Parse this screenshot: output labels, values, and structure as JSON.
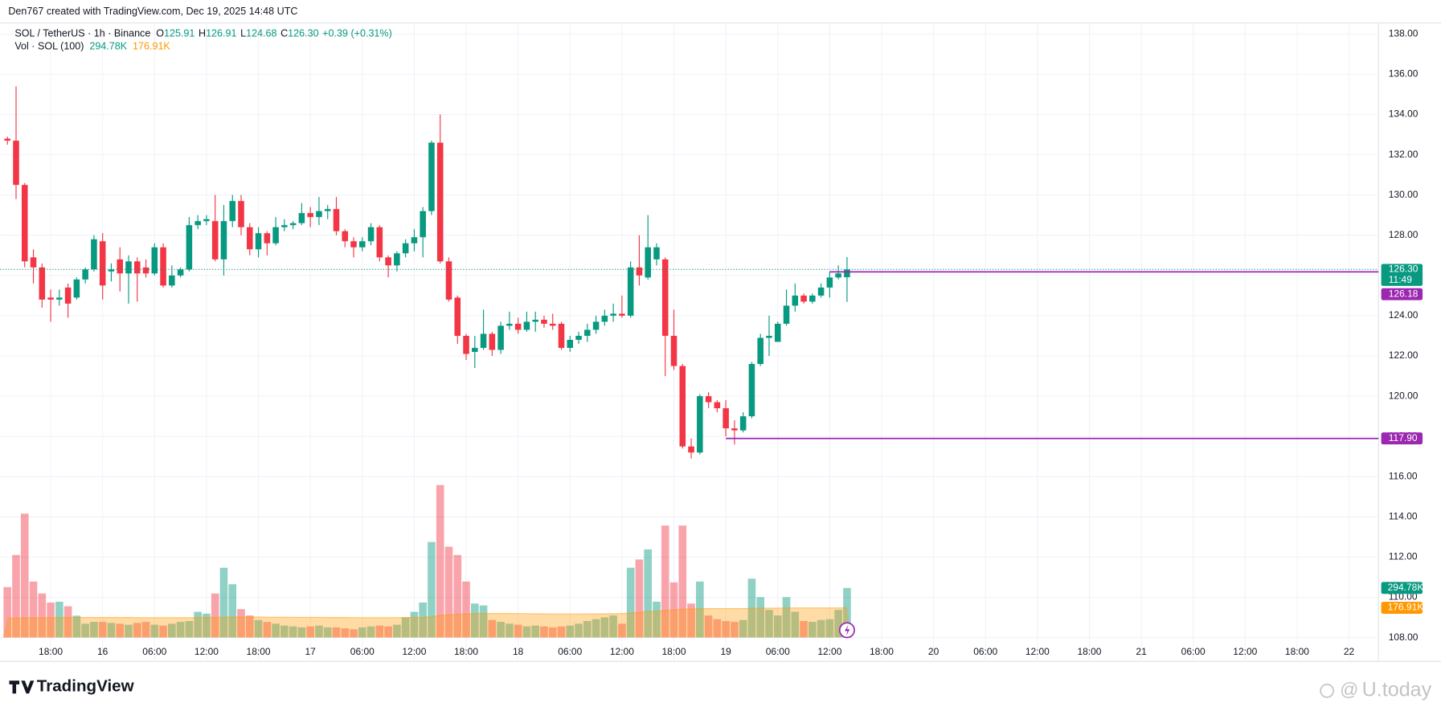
{
  "chart_data": {
    "type": "candlestick",
    "credit": "Den767 created with TradingView.com, Dec 19, 2025 14:48 UTC",
    "title": "SOL / TetherUS · 1h · Binance",
    "header_values": {
      "o_label": "O",
      "open": "125.91",
      "h_label": "H",
      "high": "126.91",
      "l_label": "L",
      "low": "124.68",
      "c_label": "C",
      "close": "126.30",
      "change": "+0.39 (+0.31%)"
    },
    "up_color": "#089981",
    "down_color": "#f23645",
    "open": [
      132.8,
      132.7,
      130.5,
      126.9,
      126.4,
      124.9,
      124.8,
      125.4,
      124.9,
      125.8,
      126.3,
      127.7,
      126.2,
      126.8,
      126.1,
      126.7,
      126.4,
      126.1,
      127.4,
      125.5,
      126.0,
      126.3,
      128.5,
      128.7,
      128.7,
      126.8,
      128.7,
      129.7,
      128.4,
      127.3,
      128.1,
      127.6,
      128.4,
      128.5,
      128.6,
      129.1,
      128.9,
      129.2,
      129.3,
      128.2,
      127.7,
      127.4,
      127.7,
      128.4,
      126.9,
      126.5,
      127.1,
      127.6,
      127.9,
      129.2,
      132.6,
      126.7,
      124.9,
      123.0,
      122.2,
      122.4,
      123.1,
      122.3,
      123.5,
      123.6,
      123.3,
      123.7,
      123.8,
      123.6,
      123.6,
      122.4,
      122.8,
      123.0,
      123.3,
      123.7,
      124.0,
      124.1,
      124.0,
      126.4,
      125.9,
      126.8,
      126.8,
      123.0,
      121.5,
      117.5,
      117.2,
      120.0,
      119.7,
      119.4,
      118.4,
      118.3,
      119.0,
      121.6,
      122.9,
      122.7,
      123.6,
      124.5,
      125.0,
      124.7,
      125.0,
      125.4,
      125.9,
      125.91
    ],
    "high": [
      132.9,
      135.4,
      130.6,
      127.3,
      126.6,
      125.3,
      125.3,
      125.6,
      125.9,
      126.4,
      128.0,
      128.1,
      126.6,
      127.4,
      127.0,
      126.9,
      126.8,
      127.6,
      127.6,
      126.5,
      126.4,
      128.9,
      129.0,
      129.0,
      130.0,
      129.5,
      130.0,
      130.0,
      128.6,
      128.4,
      128.2,
      128.9,
      128.8,
      128.7,
      129.6,
      129.4,
      129.9,
      129.5,
      129.9,
      128.3,
      127.9,
      127.9,
      128.6,
      128.5,
      127.0,
      127.2,
      127.8,
      128.3,
      129.4,
      132.7,
      134.0,
      126.9,
      125.0,
      123.1,
      123.0,
      124.3,
      123.2,
      123.7,
      124.2,
      123.9,
      124.2,
      124.2,
      124.0,
      124.1,
      123.7,
      123.0,
      123.2,
      123.6,
      124.0,
      124.3,
      124.6,
      125.0,
      126.7,
      128.0,
      129.0,
      127.6,
      126.9,
      124.3,
      121.6,
      117.9,
      120.1,
      120.2,
      119.8,
      119.8,
      118.8,
      119.2,
      121.7,
      123.1,
      124.0,
      123.7,
      125.3,
      125.6,
      125.1,
      125.1,
      125.6,
      126.2,
      126.5,
      126.91
    ],
    "low": [
      132.5,
      129.8,
      126.4,
      125.6,
      124.4,
      123.7,
      124.5,
      123.9,
      124.8,
      125.6,
      126.2,
      124.8,
      125.7,
      125.2,
      124.6,
      124.7,
      125.9,
      126.0,
      125.4,
      125.4,
      125.9,
      126.2,
      128.3,
      128.5,
      126.7,
      126.0,
      128.4,
      128.0,
      127.0,
      126.9,
      127.0,
      127.5,
      128.2,
      128.3,
      128.5,
      128.4,
      128.5,
      128.8,
      128.0,
      127.4,
      126.9,
      127.2,
      127.5,
      126.7,
      125.9,
      126.2,
      126.9,
      127.2,
      126.9,
      129.0,
      126.6,
      124.7,
      122.6,
      121.8,
      121.4,
      122.3,
      122.0,
      122.1,
      123.3,
      123.1,
      123.2,
      123.2,
      123.4,
      123.3,
      122.3,
      122.2,
      122.6,
      122.7,
      123.1,
      123.5,
      123.7,
      123.9,
      123.9,
      125.5,
      125.8,
      126.5,
      121.0,
      121.3,
      117.4,
      116.9,
      117.1,
      119.4,
      119.2,
      118.0,
      117.6,
      118.2,
      118.9,
      121.5,
      122.0,
      122.7,
      123.5,
      124.2,
      124.6,
      124.6,
      124.9,
      124.9,
      125.8,
      124.68
    ],
    "close": [
      132.7,
      130.5,
      126.7,
      126.4,
      124.8,
      124.8,
      124.9,
      124.6,
      125.8,
      126.3,
      127.8,
      125.5,
      126.3,
      126.1,
      126.7,
      126.1,
      126.1,
      127.4,
      125.5,
      126.0,
      126.3,
      128.5,
      128.7,
      128.8,
      126.8,
      128.7,
      129.7,
      128.4,
      127.3,
      128.1,
      127.6,
      128.4,
      128.5,
      128.6,
      129.1,
      128.9,
      129.2,
      129.3,
      128.2,
      127.7,
      127.4,
      127.7,
      128.4,
      126.9,
      126.5,
      127.1,
      127.6,
      127.9,
      129.2,
      132.6,
      126.7,
      124.8,
      123.0,
      122.1,
      122.4,
      123.1,
      122.3,
      123.5,
      123.6,
      123.3,
      123.7,
      123.8,
      123.6,
      123.5,
      122.4,
      122.8,
      123.0,
      123.3,
      123.7,
      124.0,
      124.1,
      124.0,
      126.4,
      126.0,
      127.4,
      127.4,
      123.0,
      121.5,
      117.5,
      117.2,
      120.0,
      119.7,
      119.4,
      118.4,
      118.3,
      119.0,
      121.6,
      122.9,
      123.0,
      123.6,
      124.5,
      125.0,
      124.7,
      125.0,
      125.4,
      125.9,
      126.1,
      126.3
    ],
    "volume": {
      "name": "Vol · SOL (100)",
      "values": [
        300,
        491,
        737,
        333,
        262,
        208,
        213,
        186,
        130,
        82,
        93,
        93,
        87,
        82,
        76,
        87,
        93,
        76,
        71,
        82,
        93,
        98,
        153,
        142,
        262,
        415,
        317,
        169,
        131,
        104,
        93,
        82,
        71,
        66,
        60,
        66,
        71,
        60,
        60,
        55,
        49,
        60,
        66,
        71,
        66,
        76,
        120,
        153,
        208,
        568,
        907,
        540,
        491,
        333,
        202,
        191,
        104,
        93,
        82,
        76,
        66,
        71,
        66,
        60,
        66,
        71,
        82,
        98,
        109,
        120,
        131,
        82,
        415,
        464,
        524,
        213,
        666,
        328,
        666,
        202,
        333,
        131,
        109,
        98,
        93,
        104,
        350,
        240,
        164,
        131,
        240,
        153,
        98,
        93,
        104,
        109,
        164,
        294.78
      ],
      "value_label": "294.78K",
      "ma_values": [
        115,
        116,
        117,
        118,
        118,
        118,
        119,
        119,
        119,
        119,
        119,
        119,
        119,
        119,
        119,
        118,
        118,
        118,
        118,
        118,
        118,
        118,
        119,
        119,
        120,
        121,
        122,
        122,
        122,
        122,
        121,
        121,
        121,
        120,
        120,
        120,
        120,
        119,
        119,
        119,
        118,
        118,
        118,
        118,
        118,
        118,
        119,
        119,
        120,
        124,
        131,
        135,
        139,
        141,
        142,
        143,
        143,
        143,
        143,
        142,
        142,
        141,
        141,
        140,
        140,
        140,
        140,
        140,
        141,
        141,
        142,
        142,
        146,
        150,
        155,
        156,
        162,
        164,
        169,
        170,
        172,
        172,
        172,
        172,
        172,
        172,
        174,
        175,
        175,
        175,
        176,
        176,
        176,
        176,
        176,
        176,
        176,
        176.91
      ],
      "ma_label": "176.91K",
      "ma_color": "#ff9800"
    },
    "last_price": {
      "value": 126.3,
      "label": "126.30",
      "countdown": "11:49"
    },
    "levels": [
      {
        "value": 126.18,
        "label": "126.18",
        "start": 95,
        "color": "#9c27b0"
      },
      {
        "value": 117.9,
        "label": "117.90",
        "start": 83,
        "color": "#9c27b0"
      }
    ],
    "ylim": [
      107.73,
      138.55
    ],
    "yticks": [
      {
        "value": 108,
        "label": "108.00"
      },
      {
        "value": 110,
        "label": "110.00"
      },
      {
        "value": 112,
        "label": "112.00"
      },
      {
        "value": 114,
        "label": "114.00"
      },
      {
        "value": 116,
        "label": "116.00"
      },
      {
        "value": 118,
        "label": "118.00"
      },
      {
        "value": 120,
        "label": "120.00"
      },
      {
        "value": 122,
        "label": "122.00"
      },
      {
        "value": 124,
        "label": "124.00"
      },
      {
        "value": 126,
        "label": "126.00"
      },
      {
        "value": 128,
        "label": "128.00"
      },
      {
        "value": 130,
        "label": "130.00"
      },
      {
        "value": 132,
        "label": "132.00"
      },
      {
        "value": 134,
        "label": "134.00"
      },
      {
        "value": 136,
        "label": "136.00"
      },
      {
        "value": 138,
        "label": "138.00"
      }
    ],
    "xlim": [
      -0.85,
      158.4
    ],
    "xticks": [
      {
        "value": 5,
        "label": "18:00"
      },
      {
        "value": 11,
        "label": "16"
      },
      {
        "value": 17,
        "label": "06:00"
      },
      {
        "value": 23,
        "label": "12:00"
      },
      {
        "value": 29,
        "label": "18:00"
      },
      {
        "value": 35,
        "label": "17"
      },
      {
        "value": 41,
        "label": "06:00"
      },
      {
        "value": 47,
        "label": "12:00"
      },
      {
        "value": 53,
        "label": "18:00"
      },
      {
        "value": 59,
        "label": "18"
      },
      {
        "value": 65,
        "label": "06:00"
      },
      {
        "value": 71,
        "label": "12:00"
      },
      {
        "value": 77,
        "label": "18:00"
      },
      {
        "value": 83,
        "label": "19"
      },
      {
        "value": 89,
        "label": "06:00"
      },
      {
        "value": 95,
        "label": "12:00"
      },
      {
        "value": 101,
        "label": "18:00"
      },
      {
        "value": 107,
        "label": "20"
      },
      {
        "value": 113,
        "label": "06:00"
      },
      {
        "value": 119,
        "label": "12:00"
      },
      {
        "value": 125,
        "label": "18:00"
      },
      {
        "value": 131,
        "label": "21"
      },
      {
        "value": 137,
        "label": "06:00"
      },
      {
        "value": 143,
        "label": "12:00"
      },
      {
        "value": 149,
        "label": "18:00"
      },
      {
        "value": 155,
        "label": "22"
      }
    ],
    "grid": true,
    "brand": "TradingView",
    "watermark": "U.today"
  }
}
